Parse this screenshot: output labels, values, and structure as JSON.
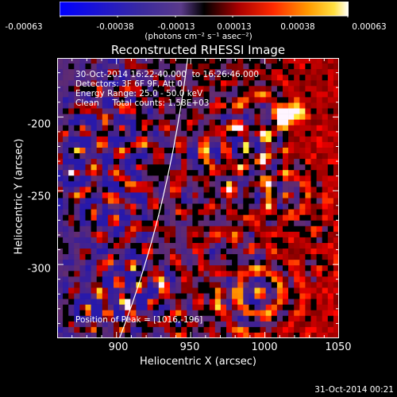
{
  "colorbar": {
    "ticks": [
      "-0.00063",
      "-0.00038",
      "-0.00013",
      "0.00013",
      "0.00038",
      "0.00063"
    ],
    "unit_label": "(photons cm⁻² s⁻¹ asec⁻²)",
    "range": [
      -0.00063,
      0.00063
    ]
  },
  "chart_data": {
    "type": "heatmap",
    "title": "Reconstructed RHESSI Image",
    "xlabel": "Heliocentric X (arcsec)",
    "ylabel": "Heliocentric Y (arcsec)",
    "xlim": [
      860,
      1050
    ],
    "ylim": [
      -350,
      -160
    ],
    "xticks": [
      "900",
      "950",
      "1000",
      "1050"
    ],
    "yticks": [
      "-200",
      "-250",
      "-300"
    ],
    "info_lines": [
      "30-Oct-2014 16:22:40.000  to 16:26:46.000",
      "Detectors: 3F 6F 9F, Att 0",
      "Energy Range: 25.0 - 50.0 keV",
      "Clean     Total counts: 1.58E+03"
    ],
    "peak_label": "Position of Peak = [1016,-196]",
    "peak": [
      1016,
      -196
    ]
  },
  "footer": {
    "date": "31-Oct-2014 00:21"
  }
}
